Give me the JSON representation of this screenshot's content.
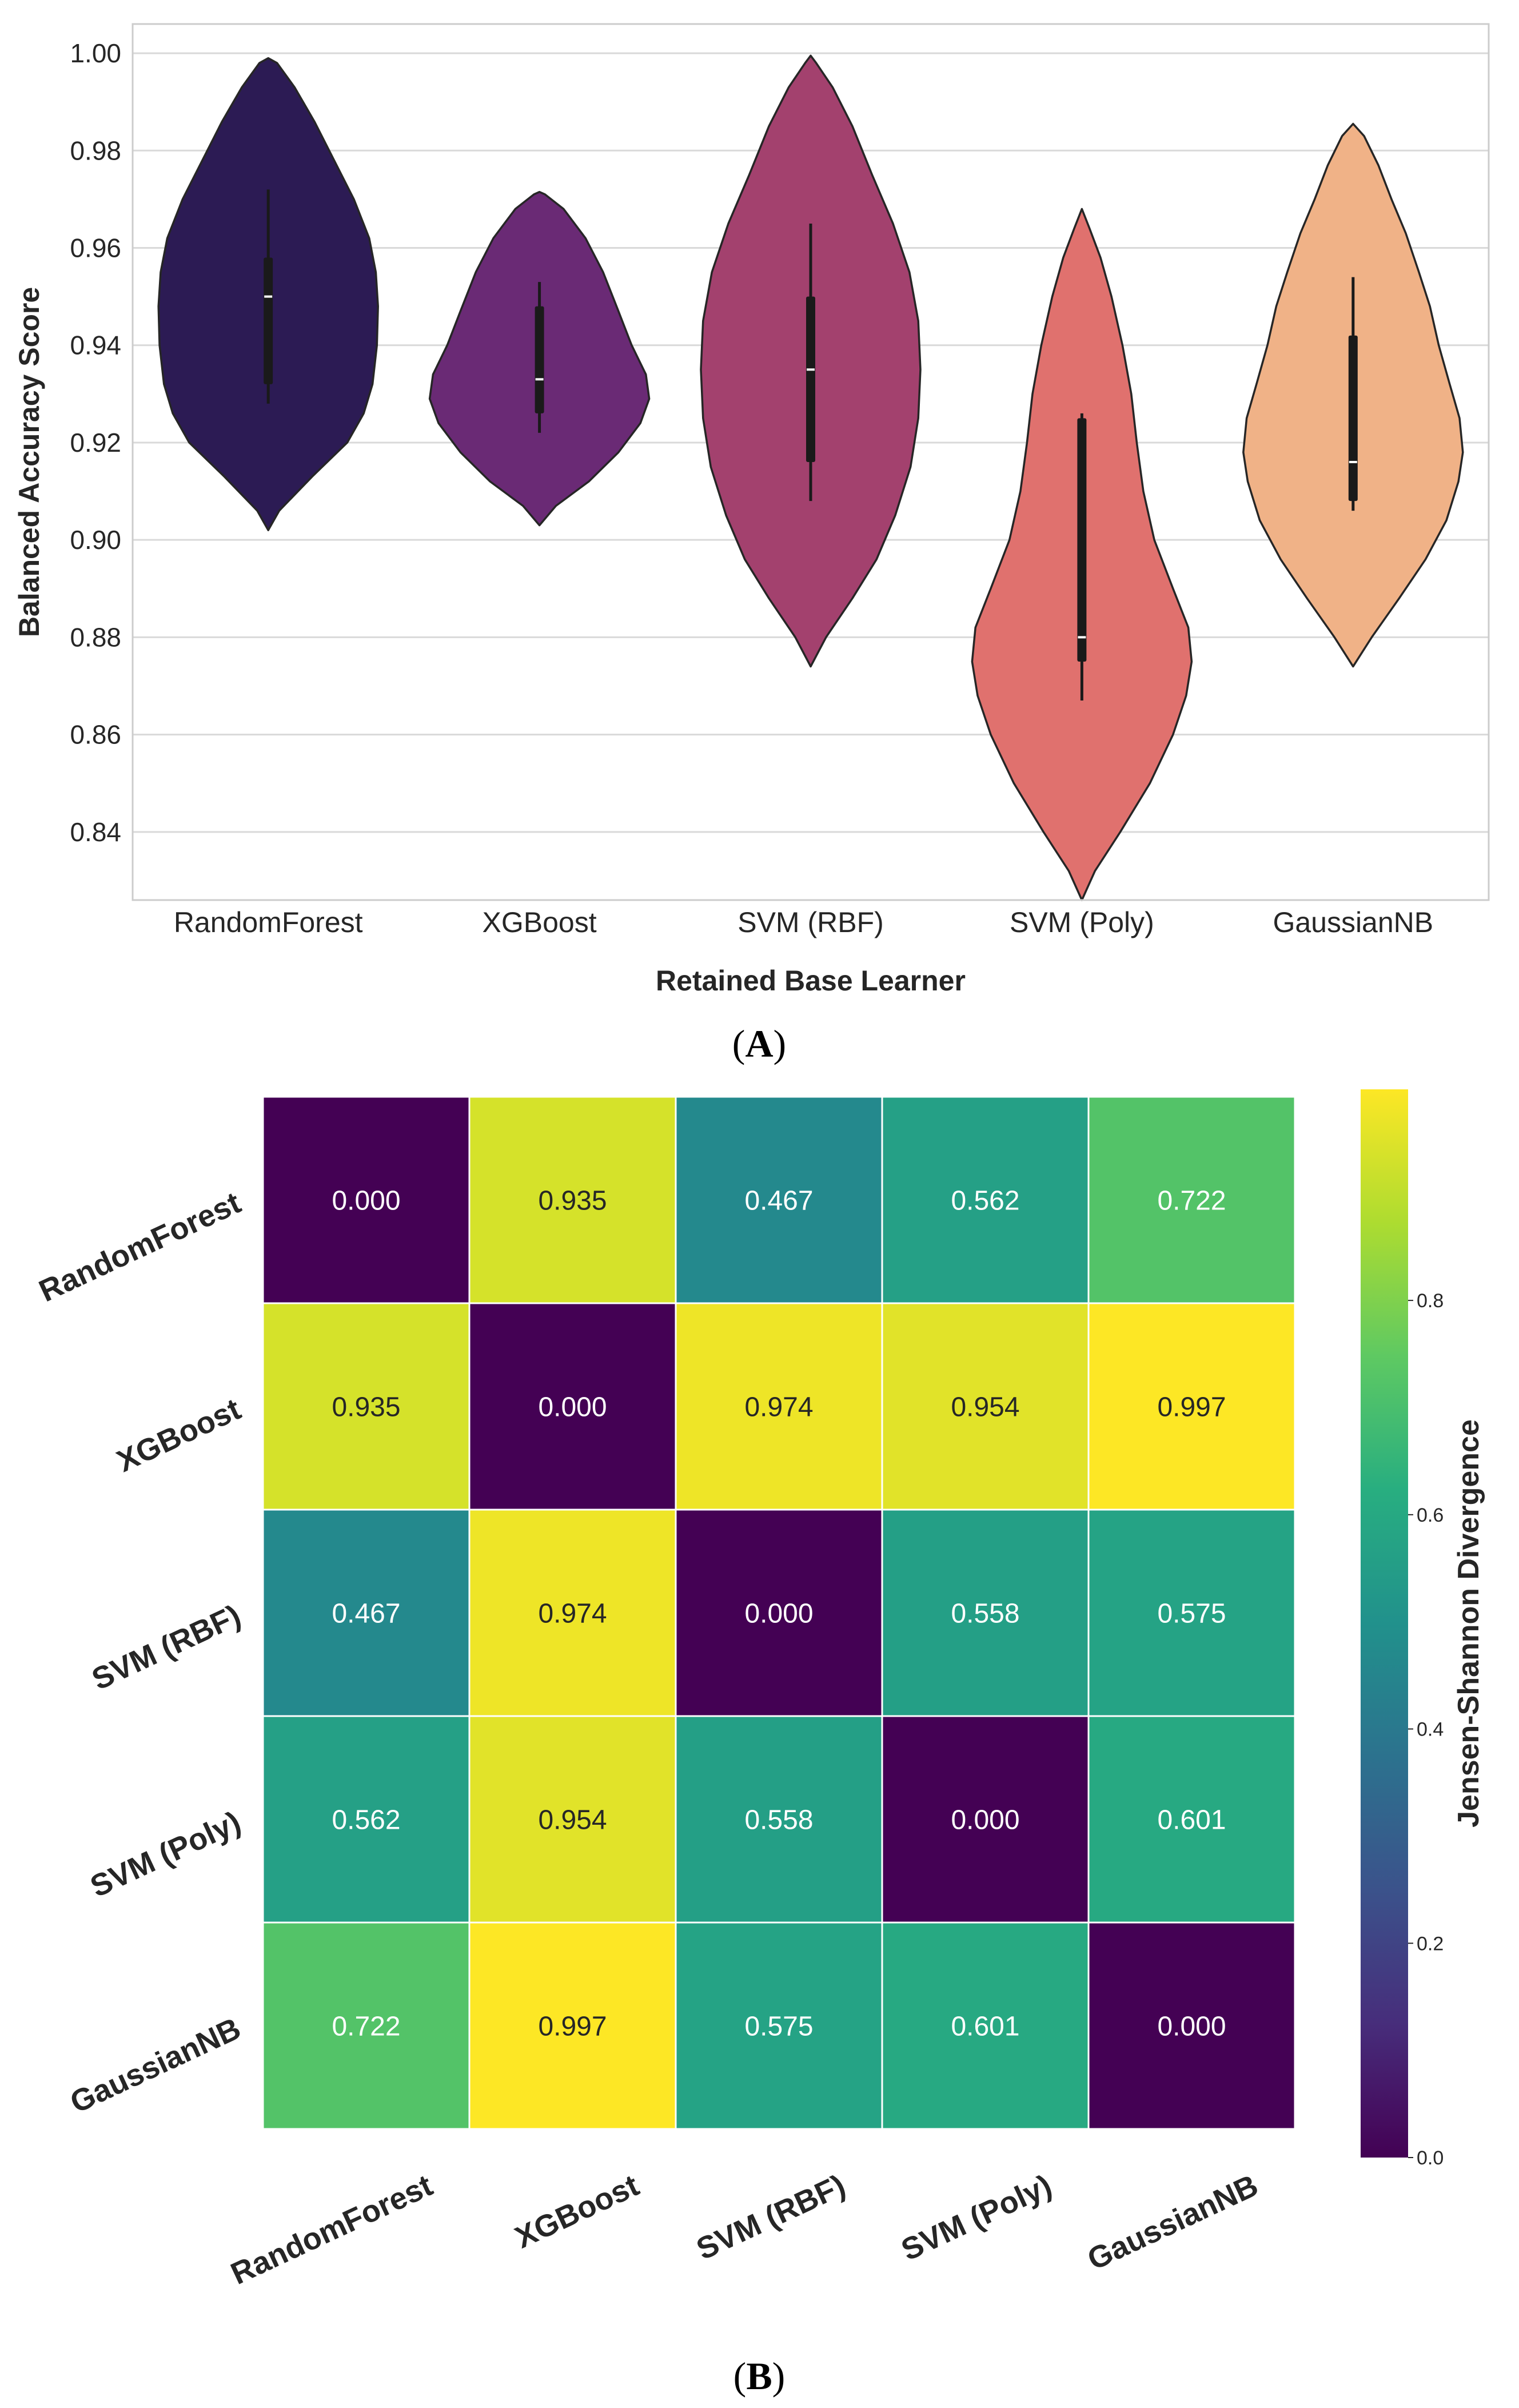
{
  "chart_data": [
    {
      "type": "violin",
      "panel_label": "(A)",
      "panel_letter": "A",
      "xlabel": "Retained Base Learner",
      "ylabel": "Balanced Accuracy Score",
      "ylim": [
        0.826,
        1.006
      ],
      "yticks": [
        "0.84",
        "0.86",
        "0.88",
        "0.90",
        "0.92",
        "0.94",
        "0.96",
        "0.98",
        "1.00"
      ],
      "grid": true,
      "categories": [
        "RandomForest",
        "XGBoost",
        "SVM (RBF)",
        "SVM (Poly)",
        "GaussianNB"
      ],
      "violins": [
        {
          "name": "RandomForest",
          "color": "#2c1b54",
          "profile": [
            [
              0.902,
              0.0
            ],
            [
              0.906,
              0.1
            ],
            [
              0.913,
              0.4
            ],
            [
              0.92,
              0.72
            ],
            [
              0.926,
              0.87
            ],
            [
              0.932,
              0.95
            ],
            [
              0.94,
              0.99
            ],
            [
              0.948,
              1.0
            ],
            [
              0.955,
              0.98
            ],
            [
              0.962,
              0.92
            ],
            [
              0.97,
              0.78
            ],
            [
              0.978,
              0.6
            ],
            [
              0.986,
              0.42
            ],
            [
              0.993,
              0.24
            ],
            [
              0.998,
              0.08
            ],
            [
              0.999,
              0.0
            ]
          ],
          "whisker": [
            0.928,
            0.972
          ],
          "box": [
            0.932,
            0.958
          ],
          "median": 0.95
        },
        {
          "name": "XGBoost",
          "color": "#6a2a75",
          "profile": [
            [
              0.903,
              0.0
            ],
            [
              0.907,
              0.15
            ],
            [
              0.912,
              0.45
            ],
            [
              0.918,
              0.72
            ],
            [
              0.924,
              0.92
            ],
            [
              0.929,
              1.0
            ],
            [
              0.934,
              0.97
            ],
            [
              0.94,
              0.84
            ],
            [
              0.947,
              0.72
            ],
            [
              0.955,
              0.58
            ],
            [
              0.962,
              0.42
            ],
            [
              0.968,
              0.22
            ],
            [
              0.971,
              0.05
            ],
            [
              0.9715,
              0.0
            ]
          ],
          "whisker": [
            0.922,
            0.953
          ],
          "box": [
            0.926,
            0.948
          ],
          "median": 0.933
        },
        {
          "name": "SVM (RBF)",
          "color": "#a3416e",
          "profile": [
            [
              0.874,
              0.0
            ],
            [
              0.88,
              0.14
            ],
            [
              0.888,
              0.38
            ],
            [
              0.896,
              0.6
            ],
            [
              0.905,
              0.77
            ],
            [
              0.915,
              0.91
            ],
            [
              0.925,
              0.98
            ],
            [
              0.935,
              1.0
            ],
            [
              0.945,
              0.98
            ],
            [
              0.955,
              0.9
            ],
            [
              0.965,
              0.75
            ],
            [
              0.975,
              0.56
            ],
            [
              0.985,
              0.38
            ],
            [
              0.993,
              0.2
            ],
            [
              0.998,
              0.05
            ],
            [
              0.9995,
              0.0
            ]
          ],
          "whisker": [
            0.908,
            0.965
          ],
          "box": [
            0.916,
            0.95
          ],
          "median": 0.935
        },
        {
          "name": "SVM (Poly)",
          "color": "#e0716e",
          "profile": [
            [
              0.826,
              0.0
            ],
            [
              0.832,
              0.12
            ],
            [
              0.84,
              0.35
            ],
            [
              0.85,
              0.62
            ],
            [
              0.86,
              0.83
            ],
            [
              0.868,
              0.95
            ],
            [
              0.875,
              1.0
            ],
            [
              0.882,
              0.97
            ],
            [
              0.89,
              0.83
            ],
            [
              0.9,
              0.66
            ],
            [
              0.91,
              0.56
            ],
            [
              0.92,
              0.5
            ],
            [
              0.93,
              0.45
            ],
            [
              0.94,
              0.37
            ],
            [
              0.95,
              0.27
            ],
            [
              0.958,
              0.17
            ],
            [
              0.964,
              0.07
            ],
            [
              0.968,
              0.0
            ]
          ],
          "whisker": [
            0.867,
            0.926
          ],
          "box": [
            0.875,
            0.925
          ],
          "median": 0.88
        },
        {
          "name": "GaussianNB",
          "color": "#f0b287",
          "profile": [
            [
              0.874,
              0.0
            ],
            [
              0.88,
              0.17
            ],
            [
              0.888,
              0.42
            ],
            [
              0.896,
              0.66
            ],
            [
              0.904,
              0.85
            ],
            [
              0.912,
              0.96
            ],
            [
              0.918,
              1.0
            ],
            [
              0.925,
              0.97
            ],
            [
              0.932,
              0.88
            ],
            [
              0.94,
              0.78
            ],
            [
              0.948,
              0.7
            ],
            [
              0.955,
              0.6
            ],
            [
              0.963,
              0.48
            ],
            [
              0.97,
              0.35
            ],
            [
              0.977,
              0.23
            ],
            [
              0.983,
              0.1
            ],
            [
              0.9855,
              0.0
            ]
          ],
          "whisker": [
            0.906,
            0.954
          ],
          "box": [
            0.908,
            0.942
          ],
          "median": 0.916
        }
      ]
    },
    {
      "type": "heatmap",
      "panel_label": "(B)",
      "panel_letter": "B",
      "labels": [
        "RandomForest",
        "XGBoost",
        "SVM (RBF)",
        "SVM (Poly)",
        "GaussianNB"
      ],
      "values": [
        [
          0.0,
          0.935,
          0.467,
          0.562,
          0.722
        ],
        [
          0.935,
          0.0,
          0.974,
          0.954,
          0.997
        ],
        [
          0.467,
          0.974,
          0.0,
          0.558,
          0.575
        ],
        [
          0.562,
          0.954,
          0.558,
          0.0,
          0.601
        ],
        [
          0.722,
          0.997,
          0.575,
          0.601,
          0.0
        ]
      ],
      "value_labels": [
        [
          "0.000",
          "0.935",
          "0.467",
          "0.562",
          "0.722"
        ],
        [
          "0.935",
          "0.000",
          "0.974",
          "0.954",
          "0.997"
        ],
        [
          "0.467",
          "0.974",
          "0.000",
          "0.558",
          "0.575"
        ],
        [
          "0.562",
          "0.954",
          "0.558",
          "0.000",
          "0.601"
        ],
        [
          "0.722",
          "0.997",
          "0.575",
          "0.601",
          "0.000"
        ]
      ],
      "colormap": "viridis",
      "colorbar": {
        "label": "Jensen-Shannon Divergence",
        "range": [
          0.0,
          0.997
        ],
        "ticks": [
          "0.0",
          "0.2",
          "0.4",
          "0.6",
          "0.8"
        ]
      }
    }
  ]
}
